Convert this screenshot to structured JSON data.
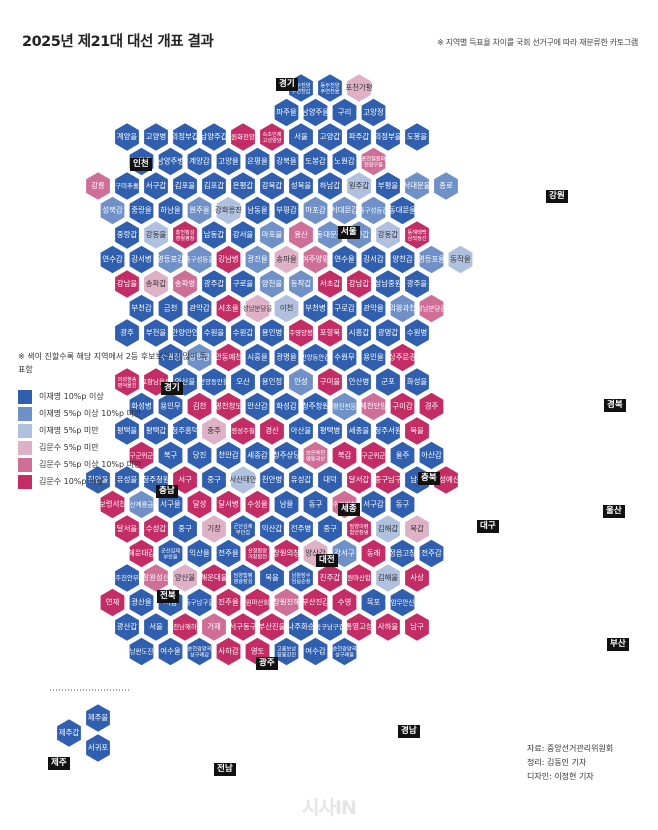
{
  "header": {
    "title": "2025년 제21대 대선 개표 결과",
    "subtitle": "※ 지역별 득표율 차이를 국회 선거구에 따라 재분류한 카토그램"
  },
  "legend": {
    "note": "※ 색이 진할수록 해당 지역에서 2등 후보보다 더 많이 득표함",
    "items": [
      {
        "label": "이재명 10%p 이상",
        "color": "#2f5fae"
      },
      {
        "label": "이재명 5%p 이상 10%p 미만",
        "color": "#6f91c7"
      },
      {
        "label": "이재명 5%p 미만",
        "color": "#b0c1df"
      },
      {
        "label": "김문수 5%p 미만",
        "color": "#deb1c6"
      },
      {
        "label": "김문수 5%p 이상 10%p 미만",
        "color": "#cf6f98"
      },
      {
        "label": "김문수 10%p 이상",
        "color": "#c42c66"
      }
    ]
  },
  "regions": [
    "경기",
    "인천",
    "강원",
    "서울",
    "경북",
    "충북",
    "충남",
    "세종",
    "대전",
    "울산",
    "전북",
    "대구",
    "광주",
    "부산",
    "전남",
    "경남",
    "제주"
  ],
  "credits": {
    "source": "자료: 중앙선거관리위원회",
    "reporter": "정리: 김동인 기자",
    "designer": "디자인: 이정현 기자"
  },
  "watermark": "시사IN",
  "map_data": {
    "hexes": [
      {
        "label": "동두천양주연천갑",
        "lean": "D1"
      },
      {
        "label": "동두천양주연천을",
        "lean": "D1"
      },
      {
        "label": "포천가평",
        "lean": "R1"
      },
      {
        "label": "파주을",
        "lean": "D1"
      },
      {
        "label": "남양주을",
        "lean": "D1"
      },
      {
        "label": "구리",
        "lean": "D1"
      },
      {
        "label": "고양정",
        "lean": "D1"
      },
      {
        "label": "계양을",
        "lean": "D1"
      },
      {
        "label": "고양병",
        "lean": "D1"
      },
      {
        "label": "의정부갑",
        "lean": "D1"
      },
      {
        "label": "남양주갑",
        "lean": "D1"
      },
      {
        "label": "철원화천양구",
        "lean": "R3"
      },
      {
        "label": "속초인제고성양양",
        "lean": "R3"
      },
      {
        "label": "서울",
        "lean": "D1"
      },
      {
        "label": "고양갑",
        "lean": "D1"
      },
      {
        "label": "파주갑",
        "lean": "D1"
      },
      {
        "label": "의정부을",
        "lean": "D1"
      },
      {
        "label": "도봉을",
        "lean": "D1"
      },
      {
        "label": "노원을",
        "lean": "D1"
      },
      {
        "label": "남양주병",
        "lean": "D1"
      },
      {
        "label": "계양갑",
        "lean": "D1"
      },
      {
        "label": "고양을",
        "lean": "D1"
      },
      {
        "label": "은평을",
        "lean": "D1"
      },
      {
        "label": "강북을",
        "lean": "D1"
      },
      {
        "label": "도봉갑",
        "lean": "D1"
      },
      {
        "label": "노원갑",
        "lean": "D1"
      },
      {
        "label": "춘천철원화천양구을",
        "lean": "R2"
      },
      {
        "label": "강릉",
        "lean": "R2"
      },
      {
        "label": "동구미추홀을",
        "lean": "D1"
      },
      {
        "label": "서구갑",
        "lean": "D1"
      },
      {
        "label": "김포을",
        "lean": "D1"
      },
      {
        "label": "김포갑",
        "lean": "D1"
      },
      {
        "label": "은평갑",
        "lean": "D1"
      },
      {
        "label": "강북갑",
        "lean": "D1"
      },
      {
        "label": "성북을",
        "lean": "D1"
      },
      {
        "label": "하남갑",
        "lean": "D1"
      },
      {
        "label": "원주갑",
        "lean": "D3"
      },
      {
        "label": "부평을",
        "lean": "D1"
      },
      {
        "label": "서대문을",
        "lean": "D2"
      },
      {
        "label": "종로",
        "lean": "D2"
      },
      {
        "label": "성북갑",
        "lean": "D2"
      },
      {
        "label": "중랑을",
        "lean": "D1"
      },
      {
        "label": "하남을",
        "lean": "D1"
      },
      {
        "label": "원주을",
        "lean": "D2"
      },
      {
        "label": "강화옹진",
        "lean": "D3"
      },
      {
        "label": "남동을",
        "lean": "D1"
      },
      {
        "label": "부평갑",
        "lean": "D1"
      },
      {
        "label": "마포갑",
        "lean": "D2"
      },
      {
        "label": "서대문갑",
        "lean": "D2"
      },
      {
        "label": "중구성동갑",
        "lean": "D2"
      },
      {
        "label": "동대문을",
        "lean": "D1"
      },
      {
        "label": "중랑갑",
        "lean": "D1"
      },
      {
        "label": "강동을",
        "lean": "D3"
      },
      {
        "label": "홍천횡성영월평창",
        "lean": "R3"
      },
      {
        "label": "남동갑",
        "lean": "D1"
      },
      {
        "label": "강서을",
        "lean": "D1"
      },
      {
        "label": "마포을",
        "lean": "D2"
      },
      {
        "label": "용산",
        "lean": "R2"
      },
      {
        "label": "동대문갑",
        "lean": "D2"
      },
      {
        "label": "광진갑",
        "lean": "D2"
      },
      {
        "label": "강동갑",
        "lean": "D3"
      },
      {
        "label": "동해태백삼척정선",
        "lean": "R3"
      },
      {
        "label": "연수갑",
        "lean": "D1"
      },
      {
        "label": "강서병",
        "lean": "D1"
      },
      {
        "label": "영등포갑",
        "lean": "D2"
      },
      {
        "label": "중구성동을",
        "lean": "D2"
      },
      {
        "label": "강남병",
        "lean": "R3"
      },
      {
        "label": "광진을",
        "lean": "D2"
      },
      {
        "label": "송파을",
        "lean": "R1"
      },
      {
        "label": "여주양평",
        "lean": "R2"
      },
      {
        "label": "연수을",
        "lean": "D1"
      },
      {
        "label": "강서갑",
        "lean": "D1"
      },
      {
        "label": "양천갑",
        "lean": "D1"
      },
      {
        "label": "영등포을",
        "lean": "D2"
      },
      {
        "label": "동작을",
        "lean": "D3"
      },
      {
        "label": "강남을",
        "lean": "R3"
      },
      {
        "label": "송파갑",
        "lean": "R1"
      },
      {
        "label": "송파병",
        "lean": "R2"
      },
      {
        "label": "광주갑",
        "lean": "D1"
      },
      {
        "label": "구로을",
        "lean": "D1"
      },
      {
        "label": "양천을",
        "lean": "D2"
      },
      {
        "label": "동작갑",
        "lean": "D2"
      },
      {
        "label": "서초갑",
        "lean": "R3"
      },
      {
        "label": "강남갑",
        "lean": "R3"
      },
      {
        "label": "성남중원",
        "lean": "D1"
      },
      {
        "label": "광주을",
        "lean": "D1"
      },
      {
        "label": "부천갑",
        "lean": "D1"
      },
      {
        "label": "금천",
        "lean": "D1"
      },
      {
        "label": "관악갑",
        "lean": "D1"
      },
      {
        "label": "서초을",
        "lean": "R3"
      },
      {
        "label": "성남분당을",
        "lean": "R1"
      },
      {
        "label": "이천",
        "lean": "D3"
      },
      {
        "label": "부천병",
        "lean": "D1"
      },
      {
        "label": "구로갑",
        "lean": "D1"
      },
      {
        "label": "관악을",
        "lean": "D1"
      },
      {
        "label": "의왕과천",
        "lean": "D2"
      },
      {
        "label": "성남분당갑",
        "lean": "R2"
      },
      {
        "label": "광주",
        "lean": "D1"
      },
      {
        "label": "부천을",
        "lean": "D1"
      },
      {
        "label": "안양만안",
        "lean": "D1"
      },
      {
        "label": "수원을",
        "lean": "D1"
      },
      {
        "label": "수원갑",
        "lean": "D1"
      },
      {
        "label": "용인병",
        "lean": "D1"
      },
      {
        "label": "영주영양봉화",
        "lean": "R3"
      },
      {
        "label": "포항북",
        "lean": "R3"
      },
      {
        "label": "시흥갑",
        "lean": "D1"
      },
      {
        "label": "광명갑",
        "lean": "D1"
      },
      {
        "label": "수원병",
        "lean": "D1"
      },
      {
        "label": "수원정",
        "lean": "D1"
      },
      {
        "label": "용인갑",
        "lean": "D2"
      },
      {
        "label": "안동예천",
        "lean": "R3"
      },
      {
        "label": "시흥을",
        "lean": "D1"
      },
      {
        "label": "광명을",
        "lean": "D1"
      },
      {
        "label": "안양동안갑",
        "lean": "D1"
      },
      {
        "label": "수원무",
        "lean": "D1"
      },
      {
        "label": "용인을",
        "lean": "D1"
      },
      {
        "label": "상주문경",
        "lean": "R3"
      },
      {
        "label": "의성청송영덕울진",
        "lean": "R3"
      },
      {
        "label": "포항남울릉",
        "lean": "R3"
      },
      {
        "label": "안산을",
        "lean": "D1"
      },
      {
        "label": "안양동안을",
        "lean": "D1"
      },
      {
        "label": "오산",
        "lean": "D1"
      },
      {
        "label": "용인정",
        "lean": "D1"
      },
      {
        "label": "안성",
        "lean": "D2"
      },
      {
        "label": "구미을",
        "lean": "R3"
      },
      {
        "label": "안산병",
        "lean": "D1"
      },
      {
        "label": "군포",
        "lean": "D1"
      },
      {
        "label": "화성을",
        "lean": "D1"
      },
      {
        "label": "화성병",
        "lean": "D1"
      },
      {
        "label": "용인무",
        "lean": "D1"
      },
      {
        "label": "김천",
        "lean": "R3"
      },
      {
        "label": "영천청도",
        "lean": "R3"
      },
      {
        "label": "안산갑",
        "lean": "D1"
      },
      {
        "label": "화성갑",
        "lean": "D1"
      },
      {
        "label": "청주청원",
        "lean": "D1"
      },
      {
        "label": "증평진천음성",
        "lean": "D2"
      },
      {
        "label": "제천단양",
        "lean": "R2"
      },
      {
        "label": "구미갑",
        "lean": "R3"
      },
      {
        "label": "경주",
        "lean": "R3"
      },
      {
        "label": "평택을",
        "lean": "D1"
      },
      {
        "label": "평택갑",
        "lean": "D1"
      },
      {
        "label": "청주흥덕",
        "lean": "D1"
      },
      {
        "label": "충주",
        "lean": "R1"
      },
      {
        "label": "고령성주칠곡",
        "lean": "R3"
      },
      {
        "label": "경산",
        "lean": "R3"
      },
      {
        "label": "아산을",
        "lean": "D1"
      },
      {
        "label": "평택병",
        "lean": "D1"
      },
      {
        "label": "세종을",
        "lean": "D1"
      },
      {
        "label": "청주서원",
        "lean": "D1"
      },
      {
        "label": "북을",
        "lean": "R3"
      },
      {
        "label": "동구군위군갑",
        "lean": "R3"
      },
      {
        "label": "북구",
        "lean": "D1"
      },
      {
        "label": "당진",
        "lean": "D1"
      },
      {
        "label": "천안갑",
        "lean": "D1"
      },
      {
        "label": "세종갑",
        "lean": "D1"
      },
      {
        "label": "청주상당",
        "lean": "D1"
      },
      {
        "label": "보은옥천영동괴산",
        "lean": "R2"
      },
      {
        "label": "북갑",
        "lean": "R3"
      },
      {
        "label": "동구군위군을",
        "lean": "R3"
      },
      {
        "label": "울주",
        "lean": "D1"
      },
      {
        "label": "아산갑",
        "lean": "D1"
      },
      {
        "label": "천안을",
        "lean": "D1"
      },
      {
        "label": "유성을",
        "lean": "D1"
      },
      {
        "label": "청주청원",
        "lean": "D1"
      },
      {
        "label": "서구",
        "lean": "R3"
      },
      {
        "label": "중구",
        "lean": "D1"
      },
      {
        "label": "서산태안",
        "lean": "D3"
      },
      {
        "label": "천안병",
        "lean": "D1"
      },
      {
        "label": "유성갑",
        "lean": "D1"
      },
      {
        "label": "대덕",
        "lean": "D1"
      },
      {
        "label": "달서갑",
        "lean": "R3"
      },
      {
        "label": "중구남구",
        "lean": "R3"
      },
      {
        "label": "남갑",
        "lean": "D1"
      },
      {
        "label": "홍성예산",
        "lean": "R3"
      },
      {
        "label": "보령서천",
        "lean": "R3"
      },
      {
        "label": "논산계룡금산",
        "lean": "D2"
      },
      {
        "label": "서구을",
        "lean": "D1"
      },
      {
        "label": "달성",
        "lean": "R3"
      },
      {
        "label": "달서병",
        "lean": "R3"
      },
      {
        "label": "수성을",
        "lean": "R3"
      },
      {
        "label": "남을",
        "lean": "D1"
      },
      {
        "label": "동구",
        "lean": "D1"
      },
      {
        "label": "공주부여청양",
        "lean": "R2"
      },
      {
        "label": "서구갑",
        "lean": "D1"
      },
      {
        "label": "동구",
        "lean": "D1"
      },
      {
        "label": "달서을",
        "lean": "R3"
      },
      {
        "label": "수성갑",
        "lean": "R3"
      },
      {
        "label": "중구",
        "lean": "D1"
      },
      {
        "label": "기장",
        "lean": "R1"
      },
      {
        "label": "군산김제부안갑",
        "lean": "D1"
      },
      {
        "label": "익산갑",
        "lean": "D1"
      },
      {
        "label": "전주병",
        "lean": "D1"
      },
      {
        "label": "중구",
        "lean": "D1"
      },
      {
        "label": "밀양의령함안창녕",
        "lean": "R3"
      },
      {
        "label": "김해갑",
        "lean": "D3"
      },
      {
        "label": "북갑",
        "lean": "R1"
      },
      {
        "label": "해운대갑",
        "lean": "R3"
      },
      {
        "label": "군산김제부안을",
        "lean": "D1"
      },
      {
        "label": "익산을",
        "lean": "D1"
      },
      {
        "label": "전주을",
        "lean": "D1"
      },
      {
        "label": "산청함양거창합천",
        "lean": "R3"
      },
      {
        "label": "창원의창",
        "lean": "R3"
      },
      {
        "label": "양산갑",
        "lean": "R1"
      },
      {
        "label": "강서구",
        "lean": "D2"
      },
      {
        "label": "동래",
        "lean": "R3"
      },
      {
        "label": "정읍고창",
        "lean": "D1"
      },
      {
        "label": "전주갑",
        "lean": "D1"
      },
      {
        "label": "완주진안무주",
        "lean": "D1"
      },
      {
        "label": "창원성산",
        "lean": "R2"
      },
      {
        "label": "양산을",
        "lean": "R1"
      },
      {
        "label": "해운대을",
        "lean": "R3"
      },
      {
        "label": "담양함평영광장성",
        "lean": "D1"
      },
      {
        "label": "북을",
        "lean": "D1"
      },
      {
        "label": "남원장수임실순창",
        "lean": "D1"
      },
      {
        "label": "진주갑",
        "lean": "R3"
      },
      {
        "label": "창원마산합포",
        "lean": "R3"
      },
      {
        "label": "김해을",
        "lean": "D3"
      },
      {
        "label": "사상",
        "lean": "R3"
      },
      {
        "label": "연제",
        "lean": "R3"
      },
      {
        "label": "광산을",
        "lean": "D1"
      },
      {
        "label": "서갑",
        "lean": "D1"
      },
      {
        "label": "동구남구을",
        "lean": "D1"
      },
      {
        "label": "진주을",
        "lean": "R3"
      },
      {
        "label": "창원마산회원",
        "lean": "R3"
      },
      {
        "label": "창원진해",
        "lean": "R2"
      },
      {
        "label": "부산진갑",
        "lean": "R3"
      },
      {
        "label": "수영",
        "lean": "R3"
      },
      {
        "label": "목포",
        "lean": "D1"
      },
      {
        "label": "영암무안신안",
        "lean": "D1"
      },
      {
        "label": "광산갑",
        "lean": "D1"
      },
      {
        "label": "서을",
        "lean": "D1"
      },
      {
        "label": "사천남해하동",
        "lean": "R3"
      },
      {
        "label": "거제",
        "lean": "R2"
      },
      {
        "label": "서구동구",
        "lean": "R3"
      },
      {
        "label": "부산진을",
        "lean": "R3"
      },
      {
        "label": "나주화순",
        "lean": "D1"
      },
      {
        "label": "동구남구갑",
        "lean": "D1"
      },
      {
        "label": "통영고성",
        "lean": "R3"
      },
      {
        "label": "사하을",
        "lean": "R3"
      },
      {
        "label": "남구",
        "lean": "R3"
      },
      {
        "label": "해남완도진도",
        "lean": "D1"
      },
      {
        "label": "여수을",
        "lean": "D1"
      },
      {
        "label": "순천광양곡성구례갑",
        "lean": "D1"
      },
      {
        "label": "사하갑",
        "lean": "R3"
      },
      {
        "label": "영도",
        "lean": "R3"
      },
      {
        "label": "고흥보성장흥강진",
        "lean": "D1"
      },
      {
        "label": "여수갑",
        "lean": "D1"
      },
      {
        "label": "순천광양곡성구례을",
        "lean": "D1"
      },
      {
        "label": "제주을",
        "lean": "D1"
      },
      {
        "label": "제주갑",
        "lean": "D1"
      },
      {
        "label": "서귀포",
        "lean": "D1"
      }
    ]
  }
}
